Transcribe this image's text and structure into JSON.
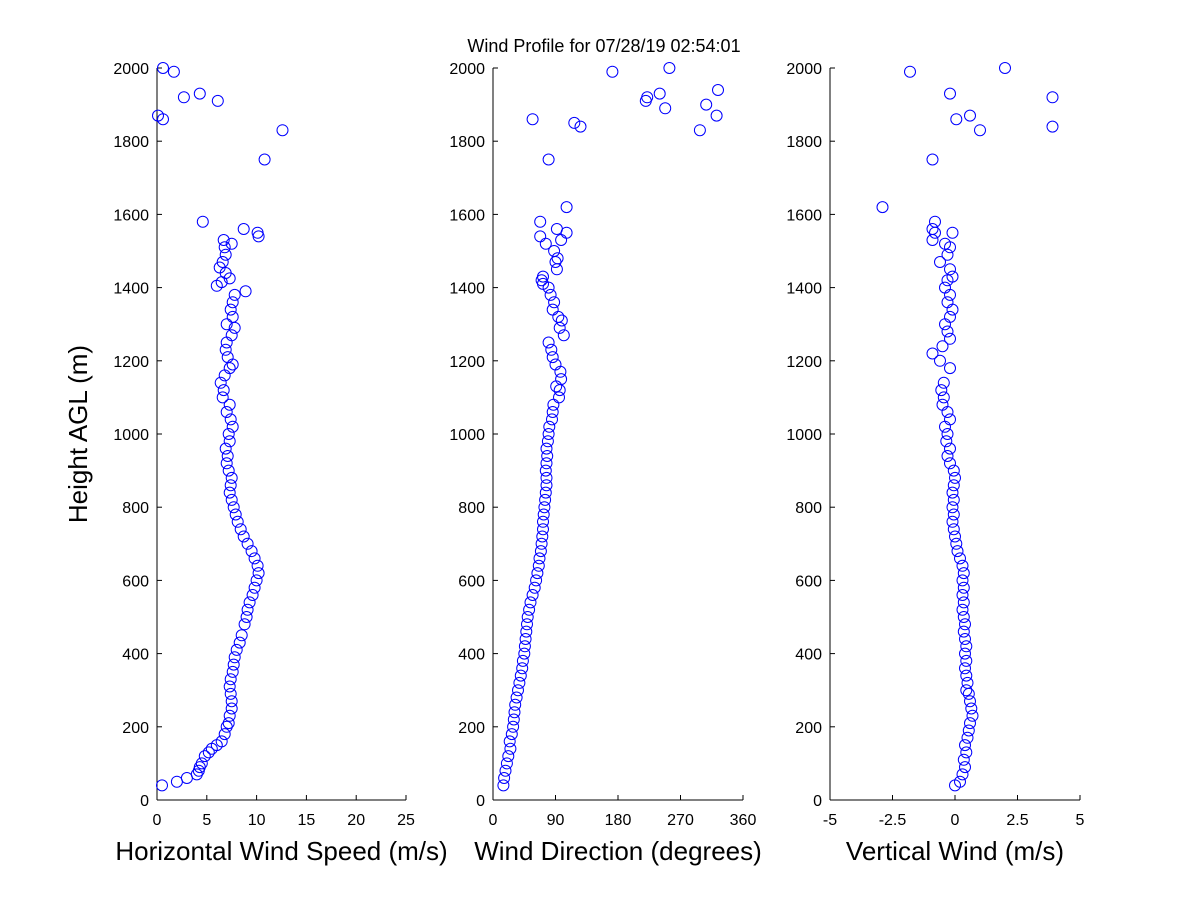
{
  "title": "Wind Profile for  07/28/19 02:54:01",
  "colors": {
    "marker": "#0000ff",
    "axes": "#000000",
    "background": "#ffffff"
  },
  "chart_data": [
    {
      "type": "scatter",
      "xlabel": "Horizontal Wind Speed (m/s)",
      "ylabel": "Height AGL (m)",
      "xlim": [
        0,
        25
      ],
      "ylim": [
        0,
        2000
      ],
      "xticks": [
        "0",
        "5",
        "10",
        "15",
        "20",
        "25"
      ],
      "yticks": [
        "0",
        "200",
        "400",
        "600",
        "800",
        "1000",
        "1200",
        "1400",
        "1600",
        "1800",
        "2000"
      ],
      "grid": false,
      "points": [
        [
          0.5,
          40
        ],
        [
          2,
          50
        ],
        [
          3,
          60
        ],
        [
          4,
          70
        ],
        [
          4.2,
          80
        ],
        [
          4.3,
          90
        ],
        [
          4.5,
          100
        ],
        [
          4.8,
          120
        ],
        [
          5.2,
          130
        ],
        [
          5.5,
          140
        ],
        [
          6,
          150
        ],
        [
          6.5,
          160
        ],
        [
          6.8,
          180
        ],
        [
          7,
          200
        ],
        [
          7.2,
          210
        ],
        [
          7.3,
          230
        ],
        [
          7.5,
          250
        ],
        [
          7.5,
          270
        ],
        [
          7.4,
          290
        ],
        [
          7.3,
          310
        ],
        [
          7.4,
          330
        ],
        [
          7.6,
          350
        ],
        [
          7.7,
          370
        ],
        [
          7.8,
          390
        ],
        [
          8,
          410
        ],
        [
          8.3,
          430
        ],
        [
          8.5,
          450
        ],
        [
          8.8,
          480
        ],
        [
          9,
          500
        ],
        [
          9.1,
          520
        ],
        [
          9.3,
          540
        ],
        [
          9.6,
          560
        ],
        [
          9.8,
          580
        ],
        [
          10,
          600
        ],
        [
          10.2,
          620
        ],
        [
          10.1,
          640
        ],
        [
          9.8,
          660
        ],
        [
          9.5,
          680
        ],
        [
          9.1,
          700
        ],
        [
          8.7,
          720
        ],
        [
          8.4,
          740
        ],
        [
          8.1,
          760
        ],
        [
          7.9,
          780
        ],
        [
          7.7,
          800
        ],
        [
          7.5,
          820
        ],
        [
          7.3,
          840
        ],
        [
          7.4,
          860
        ],
        [
          7.5,
          880
        ],
        [
          7.2,
          900
        ],
        [
          7,
          920
        ],
        [
          7.1,
          940
        ],
        [
          6.9,
          960
        ],
        [
          7.3,
          980
        ],
        [
          7.2,
          1000
        ],
        [
          7.6,
          1020
        ],
        [
          7.4,
          1040
        ],
        [
          7,
          1060
        ],
        [
          7.3,
          1080
        ],
        [
          6.6,
          1100
        ],
        [
          6.7,
          1120
        ],
        [
          6.4,
          1140
        ],
        [
          6.8,
          1160
        ],
        [
          7.3,
          1180
        ],
        [
          7.6,
          1190
        ],
        [
          7.1,
          1210
        ],
        [
          6.9,
          1230
        ],
        [
          7,
          1250
        ],
        [
          7.5,
          1270
        ],
        [
          7.8,
          1290
        ],
        [
          7,
          1300
        ],
        [
          7.6,
          1320
        ],
        [
          7.4,
          1340
        ],
        [
          7.6,
          1360
        ],
        [
          7.8,
          1380
        ],
        [
          8.9,
          1390
        ],
        [
          6,
          1405
        ],
        [
          6.5,
          1415
        ],
        [
          7.3,
          1425
        ],
        [
          6.9,
          1440
        ],
        [
          6.3,
          1455
        ],
        [
          6.6,
          1470
        ],
        [
          6.9,
          1490
        ],
        [
          6.8,
          1510
        ],
        [
          7.5,
          1520
        ],
        [
          6.7,
          1530
        ],
        [
          10.2,
          1540
        ],
        [
          10.1,
          1550
        ],
        [
          8.7,
          1560
        ],
        [
          4.6,
          1580
        ],
        [
          10.8,
          1750
        ],
        [
          12.6,
          1830
        ],
        [
          0.6,
          1860
        ],
        [
          0.1,
          1870
        ],
        [
          6.1,
          1910
        ],
        [
          2.7,
          1920
        ],
        [
          4.3,
          1930
        ],
        [
          1.7,
          1990
        ],
        [
          0.6,
          2000
        ]
      ]
    },
    {
      "type": "scatter",
      "xlabel": "Wind Direction (degrees)",
      "xlim": [
        0,
        360
      ],
      "ylim": [
        0,
        2000
      ],
      "xticks": [
        "0",
        "90",
        "180",
        "270",
        "360"
      ],
      "yticks": [
        "0",
        "200",
        "400",
        "600",
        "800",
        "1000",
        "1200",
        "1400",
        "1600",
        "1800",
        "2000"
      ],
      "grid": false,
      "points": [
        [
          15,
          40
        ],
        [
          16,
          60
        ],
        [
          18,
          80
        ],
        [
          20,
          100
        ],
        [
          22,
          120
        ],
        [
          25,
          140
        ],
        [
          24,
          160
        ],
        [
          27,
          180
        ],
        [
          29,
          200
        ],
        [
          30,
          220
        ],
        [
          31,
          240
        ],
        [
          32,
          260
        ],
        [
          34,
          280
        ],
        [
          36,
          300
        ],
        [
          38,
          320
        ],
        [
          40,
          340
        ],
        [
          42,
          360
        ],
        [
          43,
          380
        ],
        [
          45,
          400
        ],
        [
          46,
          420
        ],
        [
          47,
          440
        ],
        [
          48,
          460
        ],
        [
          49,
          480
        ],
        [
          50,
          500
        ],
        [
          52,
          520
        ],
        [
          54,
          540
        ],
        [
          57,
          560
        ],
        [
          60,
          580
        ],
        [
          62,
          600
        ],
        [
          64,
          620
        ],
        [
          66,
          640
        ],
        [
          67,
          660
        ],
        [
          69,
          680
        ],
        [
          70,
          700
        ],
        [
          71,
          720
        ],
        [
          72,
          740
        ],
        [
          72,
          760
        ],
        [
          73,
          780
        ],
        [
          74,
          800
        ],
        [
          75,
          820
        ],
        [
          76,
          840
        ],
        [
          77,
          860
        ],
        [
          77,
          880
        ],
        [
          76,
          900
        ],
        [
          77,
          920
        ],
        [
          78,
          940
        ],
        [
          77,
          960
        ],
        [
          79,
          980
        ],
        [
          80,
          1000
        ],
        [
          81,
          1020
        ],
        [
          85,
          1040
        ],
        [
          86,
          1060
        ],
        [
          87,
          1080
        ],
        [
          95,
          1100
        ],
        [
          96,
          1120
        ],
        [
          91,
          1130
        ],
        [
          98,
          1150
        ],
        [
          97,
          1170
        ],
        [
          90,
          1190
        ],
        [
          86,
          1210
        ],
        [
          84,
          1230
        ],
        [
          80,
          1250
        ],
        [
          102,
          1270
        ],
        [
          96,
          1290
        ],
        [
          99,
          1310
        ],
        [
          94,
          1320
        ],
        [
          86,
          1340
        ],
        [
          88,
          1360
        ],
        [
          83,
          1380
        ],
        [
          80,
          1400
        ],
        [
          72,
          1410
        ],
        [
          70,
          1420
        ],
        [
          72,
          1430
        ],
        [
          92,
          1450
        ],
        [
          90,
          1470
        ],
        [
          93,
          1480
        ],
        [
          88,
          1500
        ],
        [
          76,
          1520
        ],
        [
          98,
          1530
        ],
        [
          68,
          1540
        ],
        [
          106,
          1550
        ],
        [
          92,
          1560
        ],
        [
          68,
          1580
        ],
        [
          106,
          1620
        ],
        [
          80,
          1750
        ],
        [
          57,
          1860
        ],
        [
          117,
          1850
        ],
        [
          126,
          1840
        ],
        [
          298,
          1830
        ],
        [
          322,
          1870
        ],
        [
          307,
          1900
        ],
        [
          220,
          1910
        ],
        [
          222,
          1920
        ],
        [
          240,
          1930
        ],
        [
          248,
          1890
        ],
        [
          324,
          1940
        ],
        [
          172,
          1990
        ],
        [
          254,
          2000
        ]
      ]
    },
    {
      "type": "scatter",
      "xlabel": "Vertical Wind (m/s)",
      "xlim": [
        -5,
        5
      ],
      "ylim": [
        0,
        2000
      ],
      "xticks": [
        "-5",
        "-2.5",
        "0",
        "2.5",
        "5"
      ],
      "yticks": [
        "0",
        "200",
        "400",
        "600",
        "800",
        "1000",
        "1200",
        "1400",
        "1600",
        "1800",
        "2000"
      ],
      "grid": false,
      "points": [
        [
          0,
          40
        ],
        [
          0.2,
          50
        ],
        [
          0.3,
          70
        ],
        [
          0.4,
          90
        ],
        [
          0.35,
          110
        ],
        [
          0.45,
          130
        ],
        [
          0.4,
          150
        ],
        [
          0.5,
          170
        ],
        [
          0.55,
          190
        ],
        [
          0.6,
          210
        ],
        [
          0.7,
          230
        ],
        [
          0.65,
          250
        ],
        [
          0.6,
          270
        ],
        [
          0.55,
          290
        ],
        [
          0.45,
          300
        ],
        [
          0.5,
          320
        ],
        [
          0.45,
          340
        ],
        [
          0.4,
          360
        ],
        [
          0.45,
          380
        ],
        [
          0.4,
          400
        ],
        [
          0.45,
          420
        ],
        [
          0.4,
          440
        ],
        [
          0.35,
          460
        ],
        [
          0.4,
          480
        ],
        [
          0.35,
          500
        ],
        [
          0.3,
          520
        ],
        [
          0.35,
          540
        ],
        [
          0.3,
          560
        ],
        [
          0.35,
          580
        ],
        [
          0.3,
          600
        ],
        [
          0.35,
          620
        ],
        [
          0.3,
          640
        ],
        [
          0.2,
          660
        ],
        [
          0.1,
          680
        ],
        [
          0.05,
          700
        ],
        [
          0,
          720
        ],
        [
          -0.05,
          740
        ],
        [
          -0.1,
          760
        ],
        [
          -0.05,
          780
        ],
        [
          -0.1,
          800
        ],
        [
          -0.05,
          820
        ],
        [
          -0.1,
          840
        ],
        [
          -0.05,
          860
        ],
        [
          0,
          880
        ],
        [
          -0.05,
          900
        ],
        [
          -0.2,
          920
        ],
        [
          -0.3,
          940
        ],
        [
          -0.2,
          960
        ],
        [
          -0.35,
          980
        ],
        [
          -0.3,
          1000
        ],
        [
          -0.4,
          1020
        ],
        [
          -0.2,
          1040
        ],
        [
          -0.3,
          1060
        ],
        [
          -0.5,
          1080
        ],
        [
          -0.45,
          1100
        ],
        [
          -0.55,
          1120
        ],
        [
          -0.45,
          1140
        ],
        [
          -0.2,
          1180
        ],
        [
          -0.6,
          1200
        ],
        [
          -0.9,
          1220
        ],
        [
          -0.5,
          1240
        ],
        [
          -0.2,
          1260
        ],
        [
          -0.3,
          1280
        ],
        [
          -0.4,
          1300
        ],
        [
          -0.2,
          1320
        ],
        [
          -0.1,
          1340
        ],
        [
          -0.3,
          1360
        ],
        [
          -0.2,
          1380
        ],
        [
          -0.4,
          1400
        ],
        [
          -0.3,
          1420
        ],
        [
          -0.1,
          1430
        ],
        [
          -0.2,
          1450
        ],
        [
          -0.6,
          1470
        ],
        [
          -0.3,
          1490
        ],
        [
          -0.2,
          1510
        ],
        [
          -0.4,
          1520
        ],
        [
          -0.9,
          1530
        ],
        [
          -0.8,
          1550
        ],
        [
          -0.1,
          1550
        ],
        [
          -0.9,
          1560
        ],
        [
          -0.8,
          1580
        ],
        [
          -2.9,
          1620
        ],
        [
          -0.9,
          1750
        ],
        [
          1,
          1830
        ],
        [
          3.9,
          1840
        ],
        [
          0.05,
          1860
        ],
        [
          0.6,
          1870
        ],
        [
          3.9,
          1920
        ],
        [
          -0.2,
          1930
        ],
        [
          -1.8,
          1990
        ],
        [
          2,
          2000
        ]
      ]
    }
  ]
}
